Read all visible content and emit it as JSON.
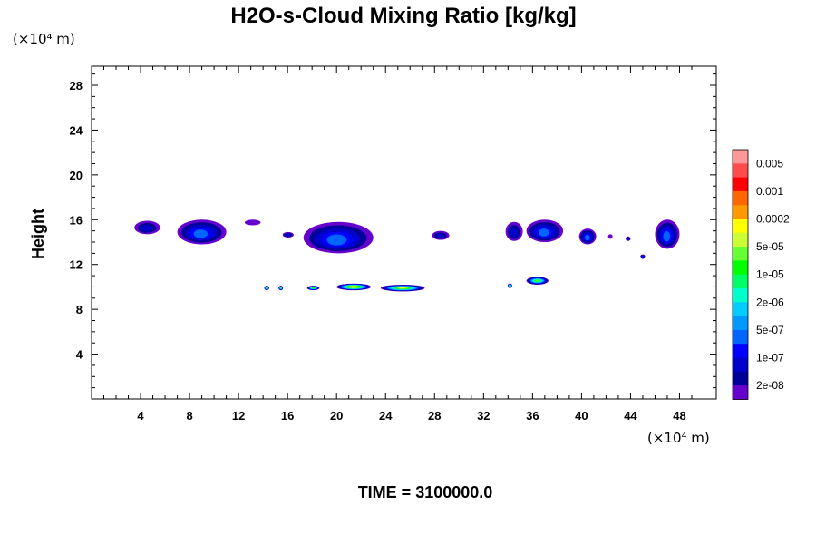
{
  "chart_data": {
    "type": "contour",
    "title": "H2O-s-Cloud Mixing Ratio [kg/kg]",
    "xlabel": "",
    "ylabel": "Height",
    "x_unit": "(×10⁴ m)",
    "y_unit": "(×10⁴ m)",
    "xlim": [
      0,
      51
    ],
    "ylim": [
      0,
      29.7
    ],
    "x_ticks": [
      4,
      8,
      12,
      16,
      20,
      24,
      28,
      32,
      36,
      40,
      44,
      48
    ],
    "x_tick_labels": [
      "4",
      "8",
      "12",
      "16",
      "20",
      "24",
      "28",
      "32",
      "36",
      "40",
      "44",
      "48"
    ],
    "y_ticks": [
      4,
      8,
      12,
      16,
      20,
      24,
      28
    ],
    "y_tick_labels": [
      "4",
      "8",
      "12",
      "16",
      "20",
      "24",
      "28"
    ],
    "time_label": "TIME = 3100000.0",
    "colorbar": {
      "labels": [
        "0.005",
        "0.001",
        "0.0002",
        "5e-05",
        "1e-05",
        "2e-06",
        "5e-07",
        "1e-07",
        "2e-08"
      ],
      "colors": [
        "#ff9999",
        "#ff4d4d",
        "#ff0000",
        "#ff6600",
        "#ff9900",
        "#ffff00",
        "#ccff33",
        "#66ff33",
        "#00ff00",
        "#00ff66",
        "#00ffcc",
        "#00ccff",
        "#0099ff",
        "#0066ff",
        "#0000ff",
        "#0000cc",
        "#000099",
        "#6600cc"
      ]
    },
    "upper_cloud_blobs": [
      {
        "x": [
          3.5,
          5.6
        ],
        "y": [
          14.7,
          15.9
        ],
        "max_level": "1e-07"
      },
      {
        "x": [
          7.0,
          11.0
        ],
        "y": [
          13.8,
          16.0
        ],
        "max_level": "5e-07"
      },
      {
        "x": [
          12.5,
          13.8
        ],
        "y": [
          15.5,
          16.0
        ],
        "max_level": "2e-08"
      },
      {
        "x": [
          15.6,
          16.5
        ],
        "y": [
          14.4,
          14.9
        ],
        "max_level": "1e-07"
      },
      {
        "x": [
          17.3,
          23.0
        ],
        "y": [
          13.0,
          15.8
        ],
        "max_level": "5e-07"
      },
      {
        "x": [
          27.8,
          29.2
        ],
        "y": [
          14.2,
          15.0
        ],
        "max_level": "1e-07"
      },
      {
        "x": [
          33.8,
          35.2
        ],
        "y": [
          14.1,
          15.8
        ],
        "max_level": "1e-07"
      },
      {
        "x": [
          35.5,
          38.5
        ],
        "y": [
          14.0,
          16.0
        ],
        "max_level": "5e-07"
      },
      {
        "x": [
          39.8,
          41.2
        ],
        "y": [
          13.8,
          15.2
        ],
        "max_level": "5e-07"
      },
      {
        "x": [
          42.2,
          42.5
        ],
        "y": [
          14.3,
          14.7
        ],
        "max_level": "2e-08"
      },
      {
        "x": [
          43.6,
          44.0
        ],
        "y": [
          14.1,
          14.5
        ],
        "max_level": "1e-07"
      },
      {
        "x": [
          44.8,
          45.2
        ],
        "y": [
          12.5,
          12.9
        ],
        "max_level": "5e-07"
      },
      {
        "x": [
          46.0,
          48.0
        ],
        "y": [
          13.4,
          16.0
        ],
        "max_level": "5e-07"
      }
    ],
    "lower_cloud_blobs": [
      {
        "x": [
          14.1,
          14.5
        ],
        "y": [
          9.7,
          10.1
        ],
        "max_level": "0.0002"
      },
      {
        "x": [
          15.3,
          15.6
        ],
        "y": [
          9.7,
          10.1
        ],
        "max_level": "5e-05"
      },
      {
        "x": [
          17.6,
          18.6
        ],
        "y": [
          9.7,
          10.1
        ],
        "max_level": "5e-05"
      },
      {
        "x": [
          20.0,
          22.8
        ],
        "y": [
          9.7,
          10.3
        ],
        "max_level": "0.001"
      },
      {
        "x": [
          23.6,
          27.2
        ],
        "y": [
          9.6,
          10.2
        ],
        "max_level": "0.0002"
      },
      {
        "x": [
          34.0,
          34.3
        ],
        "y": [
          9.9,
          10.3
        ],
        "max_level": "0.0002"
      },
      {
        "x": [
          35.5,
          37.3
        ],
        "y": [
          10.2,
          10.9
        ],
        "max_level": "5e-05"
      }
    ]
  }
}
